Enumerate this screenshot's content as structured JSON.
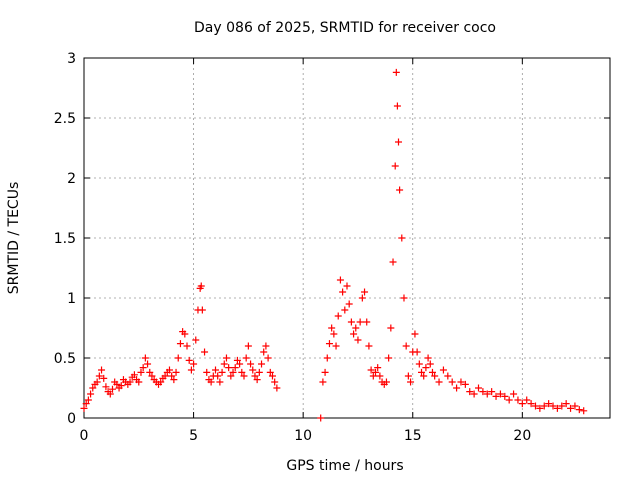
{
  "chart_data": {
    "type": "scatter",
    "title": "Day 086 of 2025, SRMTID for receiver coco",
    "xlabel": "GPS time / hours",
    "ylabel": "SRMTID / TECUs",
    "xlim": [
      0,
      24
    ],
    "ylim": [
      0,
      3
    ],
    "xticks": [
      0,
      5,
      10,
      15,
      20
    ],
    "yticks": [
      0,
      0.5,
      1,
      1.5,
      2,
      2.5,
      3
    ],
    "ytick_labels": [
      "0",
      "0.5",
      "1",
      "1.5",
      "2",
      "2.5",
      "3"
    ],
    "grid": true,
    "marker": "+",
    "color": "#ff0000",
    "series": [
      {
        "name": "SRMTID",
        "x": [
          0.0,
          0.1,
          0.2,
          0.3,
          0.4,
          0.5,
          0.6,
          0.7,
          0.8,
          0.9,
          1.0,
          1.1,
          1.2,
          1.3,
          1.4,
          1.5,
          1.6,
          1.7,
          1.8,
          1.9,
          2.0,
          2.1,
          2.2,
          2.3,
          2.4,
          2.5,
          2.6,
          2.7,
          2.8,
          2.9,
          3.0,
          3.1,
          3.2,
          3.3,
          3.4,
          3.5,
          3.6,
          3.7,
          3.8,
          3.9,
          4.0,
          4.1,
          4.2,
          4.3,
          4.4,
          4.5,
          4.6,
          4.7,
          4.8,
          4.9,
          5.0,
          5.1,
          5.2,
          5.3,
          5.35,
          5.4,
          5.5,
          5.6,
          5.7,
          5.8,
          5.9,
          6.0,
          6.1,
          6.2,
          6.3,
          6.4,
          6.5,
          6.6,
          6.7,
          6.8,
          6.9,
          7.0,
          7.1,
          7.2,
          7.3,
          7.4,
          7.5,
          7.6,
          7.7,
          7.8,
          7.9,
          8.0,
          8.1,
          8.2,
          8.3,
          8.4,
          8.5,
          8.6,
          8.7,
          8.8,
          10.8,
          10.9,
          11.0,
          11.1,
          11.2,
          11.3,
          11.4,
          11.5,
          11.6,
          11.7,
          11.8,
          11.9,
          12.0,
          12.1,
          12.2,
          12.3,
          12.4,
          12.5,
          12.6,
          12.7,
          12.8,
          12.9,
          13.0,
          13.1,
          13.2,
          13.3,
          13.4,
          13.5,
          13.6,
          13.7,
          13.8,
          13.9,
          14.0,
          14.1,
          14.2,
          14.25,
          14.3,
          14.35,
          14.4,
          14.5,
          14.6,
          14.7,
          14.8,
          14.9,
          15.0,
          15.1,
          15.2,
          15.3,
          15.4,
          15.5,
          15.6,
          15.7,
          15.8,
          15.9,
          16.0,
          16.2,
          16.4,
          16.6,
          16.8,
          17.0,
          17.2,
          17.4,
          17.6,
          17.8,
          18.0,
          18.2,
          18.4,
          18.6,
          18.8,
          19.0,
          19.2,
          19.4,
          19.6,
          19.8,
          20.0,
          20.2,
          20.4,
          20.6,
          20.8,
          21.0,
          21.2,
          21.4,
          21.6,
          21.8,
          22.0,
          22.2,
          22.4,
          22.6,
          22.8
        ],
        "y": [
          0.08,
          0.12,
          0.15,
          0.2,
          0.25,
          0.28,
          0.3,
          0.35,
          0.4,
          0.33,
          0.26,
          0.22,
          0.2,
          0.24,
          0.3,
          0.28,
          0.25,
          0.27,
          0.32,
          0.3,
          0.28,
          0.3,
          0.34,
          0.36,
          0.32,
          0.3,
          0.38,
          0.42,
          0.5,
          0.45,
          0.38,
          0.35,
          0.32,
          0.3,
          0.28,
          0.3,
          0.33,
          0.35,
          0.38,
          0.4,
          0.35,
          0.32,
          0.38,
          0.5,
          0.62,
          0.72,
          0.7,
          0.6,
          0.48,
          0.4,
          0.45,
          0.65,
          0.9,
          1.08,
          1.1,
          0.9,
          0.55,
          0.38,
          0.32,
          0.3,
          0.35,
          0.4,
          0.35,
          0.3,
          0.38,
          0.45,
          0.5,
          0.42,
          0.35,
          0.38,
          0.42,
          0.48,
          0.45,
          0.38,
          0.35,
          0.5,
          0.6,
          0.45,
          0.4,
          0.35,
          0.32,
          0.38,
          0.45,
          0.55,
          0.6,
          0.5,
          0.38,
          0.35,
          0.3,
          0.25,
          0.0,
          0.3,
          0.38,
          0.5,
          0.62,
          0.75,
          0.7,
          0.6,
          0.85,
          1.15,
          1.05,
          0.9,
          1.1,
          0.95,
          0.8,
          0.7,
          0.75,
          0.65,
          0.8,
          1.0,
          1.05,
          0.8,
          0.6,
          0.4,
          0.35,
          0.38,
          0.42,
          0.35,
          0.3,
          0.28,
          0.3,
          0.5,
          0.75,
          1.3,
          2.1,
          2.88,
          2.6,
          2.3,
          1.9,
          1.5,
          1.0,
          0.6,
          0.35,
          0.3,
          0.55,
          0.7,
          0.55,
          0.45,
          0.38,
          0.35,
          0.42,
          0.5,
          0.45,
          0.38,
          0.35,
          0.3,
          0.4,
          0.35,
          0.3,
          0.25,
          0.3,
          0.28,
          0.22,
          0.2,
          0.25,
          0.22,
          0.2,
          0.22,
          0.18,
          0.2,
          0.18,
          0.15,
          0.2,
          0.15,
          0.12,
          0.15,
          0.12,
          0.1,
          0.08,
          0.1,
          0.12,
          0.1,
          0.08,
          0.1,
          0.12,
          0.08,
          0.1,
          0.07,
          0.06
        ]
      }
    ]
  }
}
